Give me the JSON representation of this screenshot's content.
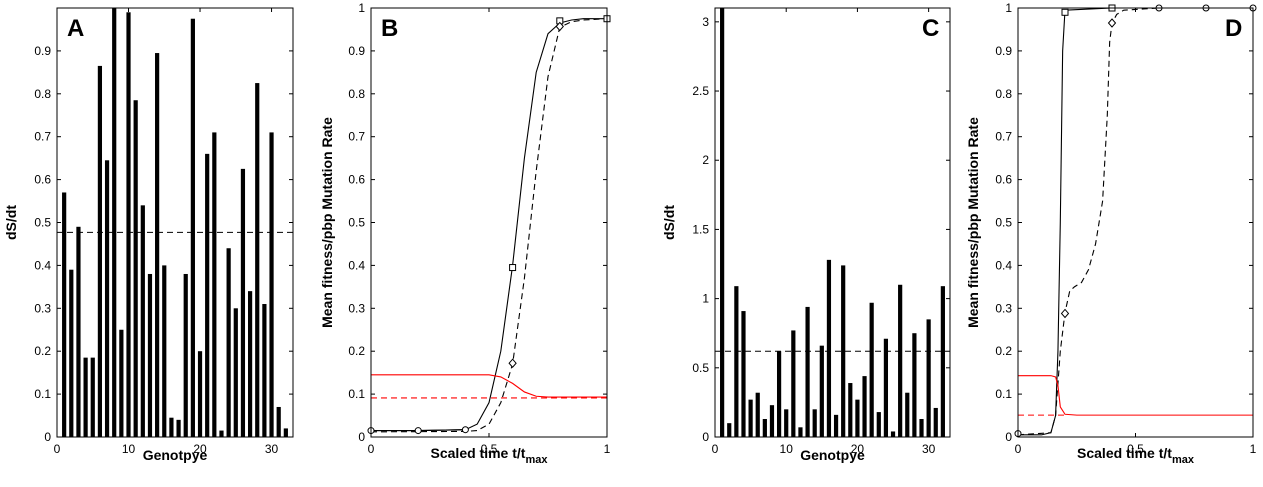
{
  "chart_data": [
    {
      "type": "bar",
      "panel_label": "A",
      "xlabel": "Genotpye",
      "ylabel": "dS/dt",
      "xlim": [
        0,
        33
      ],
      "ylim": [
        0,
        1
      ],
      "xticks": [
        0,
        10,
        20,
        30
      ],
      "yticks": [
        0,
        0.1,
        0.2,
        0.3,
        0.4,
        0.5,
        0.6,
        0.7,
        0.8,
        0.9
      ],
      "ytick_labels": [
        "0",
        "0.1",
        "0.2",
        "0.3",
        "0.4",
        "0.5",
        "0.6",
        "0.7",
        "0.8",
        "0.9"
      ],
      "x": [
        1,
        2,
        3,
        4,
        5,
        6,
        7,
        8,
        9,
        10,
        11,
        12,
        13,
        14,
        15,
        16,
        17,
        18,
        19,
        20,
        21,
        22,
        23,
        24,
        25,
        26,
        27,
        28,
        29,
        30,
        31,
        32
      ],
      "values": [
        0.57,
        0.39,
        0.49,
        0.185,
        0.185,
        0.865,
        0.645,
        1.0,
        0.25,
        0.99,
        0.785,
        0.54,
        0.38,
        0.895,
        0.4,
        0.045,
        0.04,
        0.38,
        0.975,
        0.2,
        0.66,
        0.71,
        0.015,
        0.44,
        0.3,
        0.625,
        0.34,
        0.825,
        0.31,
        0.71,
        0.07,
        0.02
      ],
      "reference_line": {
        "y": 0.477,
        "style": "dashed",
        "color": "#000000"
      }
    },
    {
      "type": "line",
      "panel_label": "B",
      "xlabel": "Scaled time t/t",
      "xlabel_sub": "max",
      "ylabel": "Mean fitness/pbp Mutation Rate",
      "xlim": [
        0,
        1
      ],
      "ylim": [
        0,
        1
      ],
      "xticks": [
        0,
        0.5,
        1
      ],
      "xtick_labels": [
        "0",
        "0.5",
        "1"
      ],
      "yticks": [
        0,
        0.1,
        0.2,
        0.3,
        0.4,
        0.5,
        0.6,
        0.7,
        0.8,
        0.9,
        1
      ],
      "ytick_labels": [
        "0",
        "0.1",
        "0.2",
        "0.3",
        "0.4",
        "0.5",
        "0.6",
        "0.7",
        "0.8",
        "0.9",
        "1"
      ],
      "series": [
        {
          "style": "solid",
          "color": "#000000",
          "x": [
            0,
            0.2,
            0.4,
            0.45,
            0.5,
            0.55,
            0.6,
            0.65,
            0.7,
            0.75,
            0.8,
            0.85,
            0.9,
            1.0
          ],
          "y": [
            0.015,
            0.015,
            0.017,
            0.03,
            0.08,
            0.2,
            0.4,
            0.65,
            0.85,
            0.94,
            0.965,
            0.972,
            0.975,
            0.975
          ],
          "markers": {
            "symbol": "square",
            "x": [
              0.6,
              0.8,
              1.0
            ],
            "y": [
              0.395,
              0.97,
              0.975
            ]
          }
        },
        {
          "style": "solid",
          "color": "#000000",
          "x": [
            0,
            0.2,
            0.4
          ],
          "y": [
            0.015,
            0.015,
            0.017
          ],
          "markers": {
            "symbol": "circle",
            "x": [
              0,
              0.2,
              0.4
            ],
            "y": [
              0.015,
              0.015,
              0.017
            ]
          }
        },
        {
          "style": "dashed",
          "color": "#000000",
          "x": [
            0,
            0.4,
            0.45,
            0.5,
            0.55,
            0.6,
            0.65,
            0.7,
            0.75,
            0.8,
            0.85,
            0.9,
            1.0
          ],
          "y": [
            0.012,
            0.013,
            0.015,
            0.03,
            0.08,
            0.17,
            0.37,
            0.62,
            0.84,
            0.955,
            0.968,
            0.972,
            0.975
          ],
          "markers": {
            "symbol": "diamond",
            "x": [
              0.6,
              0.8
            ],
            "y": [
              0.172,
              0.957
            ]
          }
        },
        {
          "style": "solid",
          "color": "#ff0000",
          "x": [
            0,
            0.5,
            0.55,
            0.6,
            0.65,
            0.7,
            0.75,
            1.0
          ],
          "y": [
            0.145,
            0.145,
            0.14,
            0.125,
            0.105,
            0.095,
            0.093,
            0.093
          ]
        },
        {
          "style": "dashed",
          "color": "#ff0000",
          "x": [
            0,
            1.0
          ],
          "y": [
            0.091,
            0.091
          ]
        }
      ]
    },
    {
      "type": "bar",
      "panel_label": "C",
      "xlabel": "Genotpye",
      "ylabel": "dS/dt",
      "xlim": [
        0,
        33
      ],
      "ylim": [
        0,
        3.1
      ],
      "xticks": [
        0,
        10,
        20,
        30
      ],
      "yticks": [
        0,
        0.5,
        1,
        1.5,
        2,
        2.5,
        3
      ],
      "ytick_labels": [
        "0",
        "0.5",
        "1",
        "1.5",
        "2",
        "2.5",
        "3"
      ],
      "x": [
        1,
        2,
        3,
        4,
        5,
        6,
        7,
        8,
        9,
        10,
        11,
        12,
        13,
        14,
        15,
        16,
        17,
        18,
        19,
        20,
        21,
        22,
        23,
        24,
        25,
        26,
        27,
        28,
        29,
        30,
        31,
        32
      ],
      "values": [
        3.1,
        0.1,
        1.09,
        0.91,
        0.27,
        0.32,
        0.13,
        0.23,
        0.62,
        0.2,
        0.77,
        0.07,
        0.94,
        0.2,
        0.66,
        1.28,
        0.16,
        1.24,
        0.39,
        0.27,
        0.44,
        0.97,
        0.18,
        0.71,
        0.04,
        1.1,
        0.32,
        0.75,
        0.13,
        0.85,
        0.21,
        1.09
      ],
      "reference_line": {
        "y": 0.62,
        "style": "dashed",
        "color": "#000000"
      }
    },
    {
      "type": "line",
      "panel_label": "D",
      "xlabel": "Scaled time t/t",
      "xlabel_sub": "max",
      "ylabel": "Mean fitness/pbp Mutation Rate",
      "xlim": [
        0,
        1
      ],
      "ylim": [
        0,
        1
      ],
      "xticks": [
        0,
        0.5,
        1
      ],
      "xtick_labels": [
        "0",
        "0.5",
        "1"
      ],
      "yticks": [
        0,
        0.1,
        0.2,
        0.3,
        0.4,
        0.5,
        0.6,
        0.7,
        0.8,
        0.9,
        1
      ],
      "ytick_labels": [
        "0",
        "0.1",
        "0.2",
        "0.3",
        "0.4",
        "0.5",
        "0.6",
        "0.7",
        "0.8",
        "0.9",
        "1"
      ],
      "series": [
        {
          "style": "solid",
          "color": "#000000",
          "x": [
            0,
            0.1,
            0.14,
            0.16,
            0.17,
            0.18,
            0.19,
            0.2,
            0.4,
            0.6,
            0.8,
            1.0
          ],
          "y": [
            0.005,
            0.005,
            0.01,
            0.05,
            0.2,
            0.5,
            0.9,
            0.995,
            1.0,
            1.0,
            1.0,
            1.0
          ],
          "markers": {
            "symbol": "square",
            "x": [
              0.2,
              0.4
            ],
            "y": [
              0.99,
              1.0
            ]
          }
        },
        {
          "style": "solid",
          "color": "#000000",
          "x": [
            0.6,
            0.8,
            1.0
          ],
          "y": [
            1.0,
            1.0,
            1.0
          ],
          "markers": {
            "symbol": "circle",
            "x": [
              0,
              0.6,
              0.8,
              1.0
            ],
            "y": [
              0.008,
              1.0,
              1.0,
              1.0
            ]
          }
        },
        {
          "style": "dashed",
          "color": "#000000",
          "x": [
            0,
            0.14,
            0.16,
            0.18,
            0.2,
            0.22,
            0.24,
            0.27,
            0.3,
            0.33,
            0.36,
            0.38,
            0.39,
            0.4,
            0.42,
            0.45,
            0.6,
            1.0
          ],
          "y": [
            0.005,
            0.01,
            0.05,
            0.2,
            0.29,
            0.34,
            0.35,
            0.36,
            0.39,
            0.45,
            0.55,
            0.75,
            0.92,
            0.965,
            0.985,
            0.995,
            1.0,
            1.0
          ],
          "markers": {
            "symbol": "diamond",
            "x": [
              0.2,
              0.4
            ],
            "y": [
              0.288,
              0.965
            ]
          }
        },
        {
          "style": "solid",
          "color": "#ff0000",
          "x": [
            0,
            0.14,
            0.16,
            0.17,
            0.18,
            0.2,
            0.25,
            1.0
          ],
          "y": [
            0.143,
            0.143,
            0.14,
            0.12,
            0.07,
            0.053,
            0.051,
            0.051
          ]
        },
        {
          "style": "dashed",
          "color": "#ff0000",
          "x": [
            0,
            0.2
          ],
          "y": [
            0.051,
            0.051
          ]
        }
      ]
    }
  ]
}
